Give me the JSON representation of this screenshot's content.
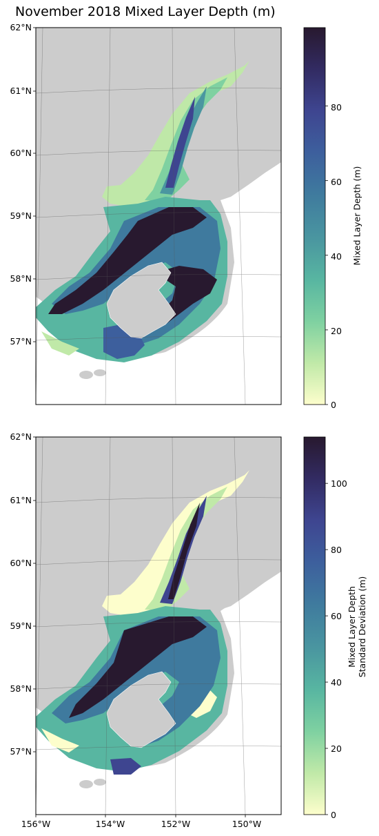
{
  "title": "November 2018 Mixed Layer Depth (m)",
  "colors": {
    "land": "#cccccc",
    "colormap": [
      "#fdfecc",
      "#c0e9a8",
      "#7fd1a1",
      "#58b6a1",
      "#4a96a0",
      "#3f7a9e",
      "#3d5f9d",
      "#3e4590",
      "#322b62",
      "#28192f"
    ]
  },
  "panels": [
    {
      "lat_labels": [
        "62°N",
        "61°N",
        "60°N",
        "59°N",
        "58°N",
        "57°N"
      ],
      "colorbar": {
        "label_lines": [
          "Mixed Layer Depth (m)"
        ],
        "min": 0,
        "max": 101,
        "ticks": [
          "0",
          "20",
          "40",
          "60",
          "80"
        ]
      }
    },
    {
      "lat_labels": [
        "62°N",
        "61°N",
        "60°N",
        "59°N",
        "58°N",
        "57°N"
      ],
      "lon_labels": [
        "156°W",
        "154°W",
        "152°W",
        "150°W"
      ],
      "colorbar": {
        "label_lines": [
          "Mixed Layer Depth",
          "Standard Deviation (m)"
        ],
        "min": 0,
        "max": 114,
        "ticks": [
          "0",
          "20",
          "40",
          "60",
          "80",
          "100"
        ]
      }
    }
  ]
}
